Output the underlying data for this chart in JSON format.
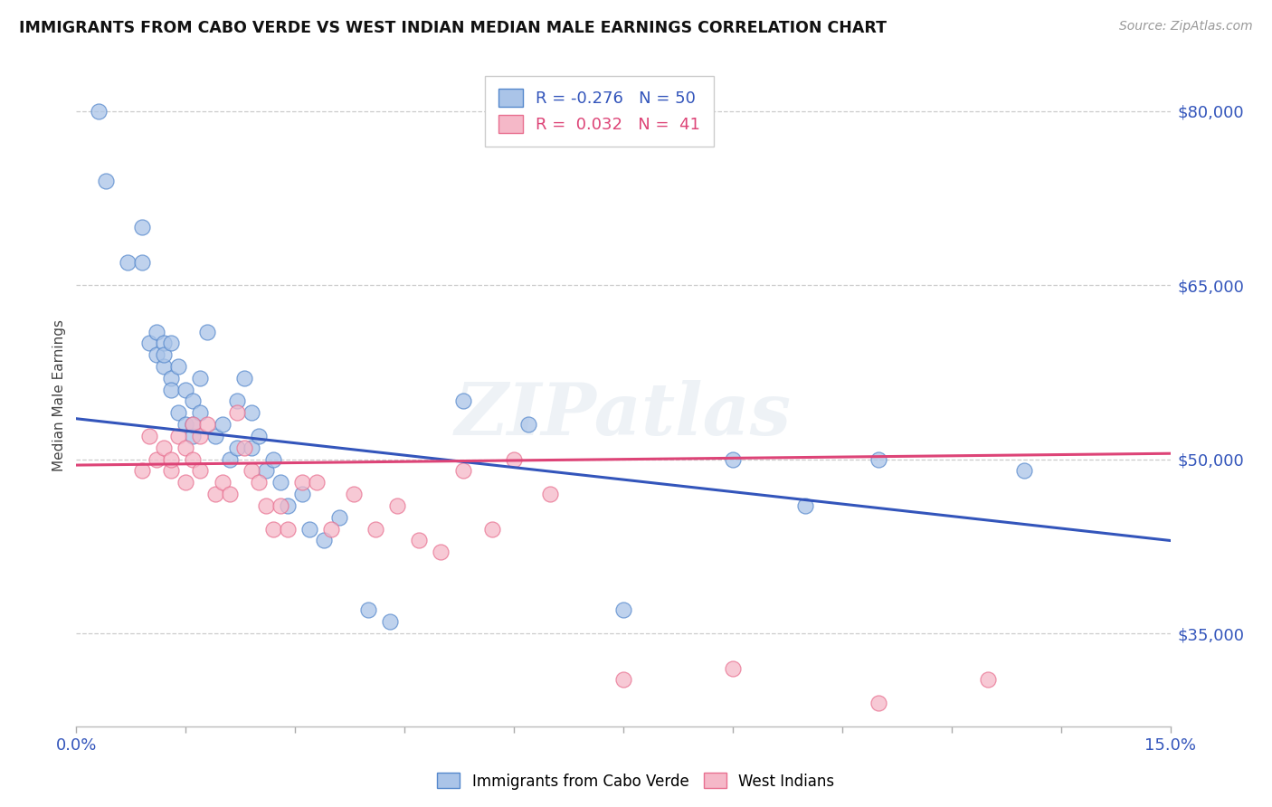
{
  "title": "IMMIGRANTS FROM CABO VERDE VS WEST INDIAN MEDIAN MALE EARNINGS CORRELATION CHART",
  "source": "Source: ZipAtlas.com",
  "ylabel": "Median Male Earnings",
  "yticks": [
    35000,
    50000,
    65000,
    80000
  ],
  "ytick_labels": [
    "$35,000",
    "$50,000",
    "$65,000",
    "$80,000"
  ],
  "xmin": 0.0,
  "xmax": 0.15,
  "ymin": 27000,
  "ymax": 84000,
  "legend_blue_r": "-0.276",
  "legend_blue_n": "50",
  "legend_pink_r": "0.032",
  "legend_pink_n": "41",
  "legend_blue_label": "Immigrants from Cabo Verde",
  "legend_pink_label": "West Indians",
  "blue_fill_color": "#aac4e8",
  "pink_fill_color": "#f5b8c8",
  "blue_edge_color": "#5588cc",
  "pink_edge_color": "#e87090",
  "blue_line_color": "#3355bb",
  "pink_line_color": "#dd4477",
  "watermark": "ZIPatlas",
  "blue_line_y0": 53500,
  "blue_line_y1": 43000,
  "pink_line_y0": 49500,
  "pink_line_y1": 50500,
  "blue_scatter_x": [
    0.003,
    0.004,
    0.007,
    0.009,
    0.009,
    0.01,
    0.011,
    0.011,
    0.012,
    0.012,
    0.012,
    0.013,
    0.013,
    0.013,
    0.014,
    0.014,
    0.015,
    0.015,
    0.016,
    0.016,
    0.016,
    0.017,
    0.017,
    0.018,
    0.019,
    0.02,
    0.021,
    0.022,
    0.022,
    0.023,
    0.024,
    0.024,
    0.025,
    0.026,
    0.027,
    0.028,
    0.029,
    0.031,
    0.032,
    0.034,
    0.036,
    0.04,
    0.043,
    0.053,
    0.062,
    0.075,
    0.09,
    0.1,
    0.11,
    0.13
  ],
  "blue_scatter_y": [
    80000,
    74000,
    67000,
    70000,
    67000,
    60000,
    59000,
    61000,
    58000,
    60000,
    59000,
    57000,
    60000,
    56000,
    58000,
    54000,
    56000,
    53000,
    52000,
    55000,
    53000,
    57000,
    54000,
    61000,
    52000,
    53000,
    50000,
    51000,
    55000,
    57000,
    54000,
    51000,
    52000,
    49000,
    50000,
    48000,
    46000,
    47000,
    44000,
    43000,
    45000,
    37000,
    36000,
    55000,
    53000,
    37000,
    50000,
    46000,
    50000,
    49000
  ],
  "pink_scatter_x": [
    0.009,
    0.01,
    0.011,
    0.012,
    0.013,
    0.013,
    0.014,
    0.015,
    0.015,
    0.016,
    0.016,
    0.017,
    0.017,
    0.018,
    0.019,
    0.02,
    0.021,
    0.022,
    0.023,
    0.024,
    0.025,
    0.026,
    0.027,
    0.028,
    0.029,
    0.031,
    0.033,
    0.035,
    0.038,
    0.041,
    0.044,
    0.047,
    0.05,
    0.053,
    0.057,
    0.06,
    0.065,
    0.075,
    0.09,
    0.11,
    0.125
  ],
  "pink_scatter_y": [
    49000,
    52000,
    50000,
    51000,
    49000,
    50000,
    52000,
    48000,
    51000,
    53000,
    50000,
    52000,
    49000,
    53000,
    47000,
    48000,
    47000,
    54000,
    51000,
    49000,
    48000,
    46000,
    44000,
    46000,
    44000,
    48000,
    48000,
    44000,
    47000,
    44000,
    46000,
    43000,
    42000,
    49000,
    44000,
    50000,
    47000,
    31000,
    32000,
    29000,
    31000
  ]
}
